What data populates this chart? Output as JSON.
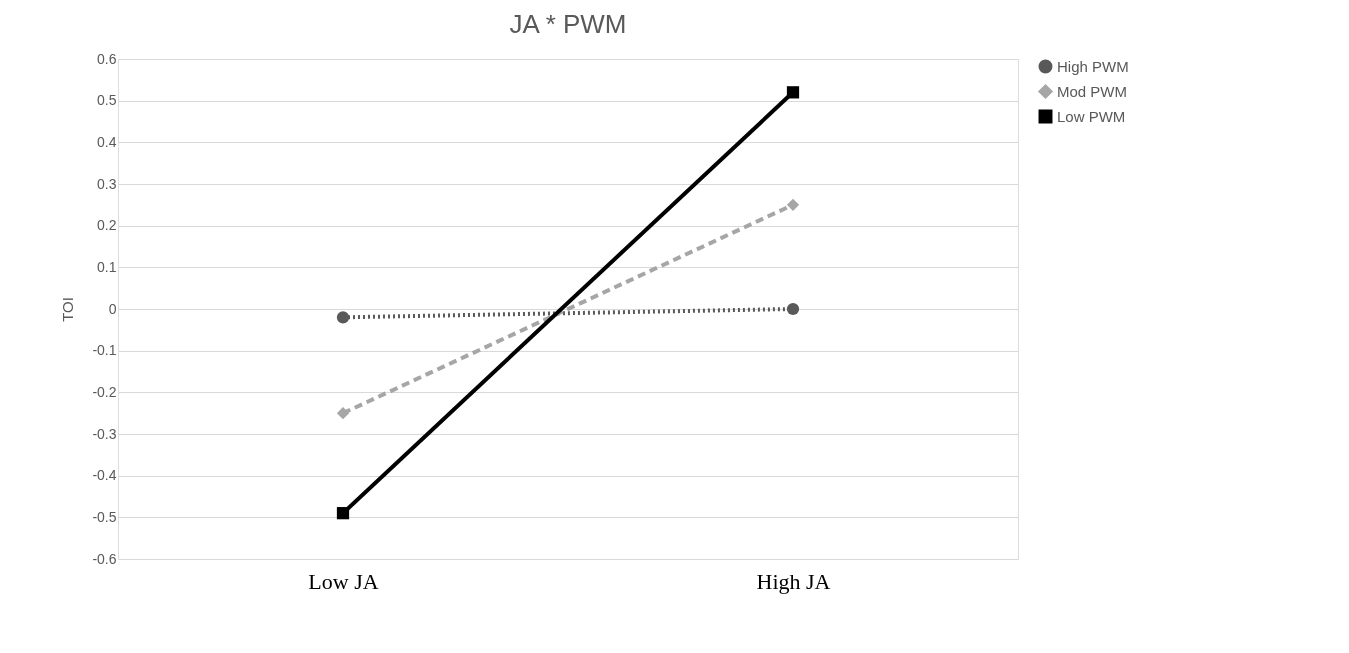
{
  "chart_data": {
    "type": "line",
    "title": "JA * PWM",
    "ylabel": "TOI",
    "categories": [
      "Low JA",
      "High JA"
    ],
    "series": [
      {
        "name": "High PWM",
        "color": "#595959",
        "values": [
          -0.02,
          0.0
        ],
        "marker": "circle",
        "line_style": "dotted"
      },
      {
        "name": "Mod PWM",
        "color": "#a6a6a6",
        "values": [
          -0.25,
          0.25
        ],
        "marker": "diamond",
        "line_style": "dashed"
      },
      {
        "name": "Low PWM",
        "color": "#000000",
        "values": [
          -0.49,
          0.52
        ],
        "marker": "square",
        "line_style": "solid"
      }
    ],
    "ylim": [
      -0.6,
      0.6
    ],
    "yticks": [
      -0.6,
      -0.5,
      -0.4,
      -0.3,
      -0.2,
      -0.1,
      0,
      0.1,
      0.2,
      0.3,
      0.4,
      0.5,
      0.6
    ],
    "grid": "y",
    "legend": "right"
  }
}
